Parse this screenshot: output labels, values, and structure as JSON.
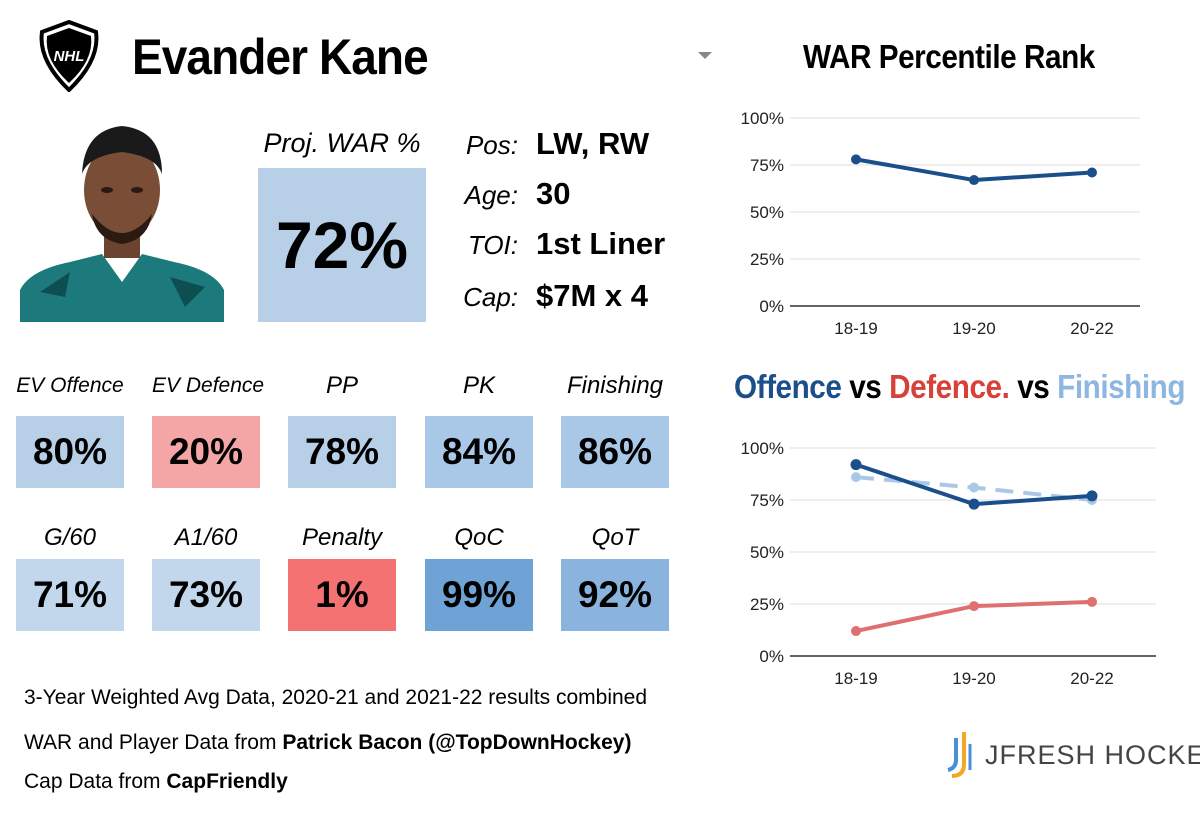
{
  "header": {
    "player_name": "Evander Kane",
    "league_logo_text": "NHL"
  },
  "projection": {
    "label": "Proj. WAR %",
    "value": "72%"
  },
  "info": [
    {
      "label": "Pos:",
      "value": "LW, RW"
    },
    {
      "label": "Age:",
      "value": "30"
    },
    {
      "label": "TOI:",
      "value": "1st Liner"
    },
    {
      "label": "Cap:",
      "value": "$7M x 4"
    }
  ],
  "stats": [
    {
      "label": "EV Offence",
      "value": "80%",
      "color": "#b7d0e8"
    },
    {
      "label": "EV Defence",
      "value": "20%",
      "color": "#f4a6a6"
    },
    {
      "label": "PP",
      "value": "78%",
      "color": "#b7d0e8"
    },
    {
      "label": "PK",
      "value": "84%",
      "color": "#a9c7e6"
    },
    {
      "label": "Finishing",
      "value": "86%",
      "color": "#a9c7e6"
    },
    {
      "label": "G/60",
      "value": "71%",
      "color": "#c2d7ec"
    },
    {
      "label": "A1/60",
      "value": "73%",
      "color": "#c2d7ec"
    },
    {
      "label": "Penalty",
      "value": "1%",
      "color": "#f57272"
    },
    {
      "label": "QoC",
      "value": "99%",
      "color": "#6fa3d6"
    },
    {
      "label": "QoT",
      "value": "92%",
      "color": "#8ab4de"
    }
  ],
  "footer": {
    "line1": "3-Year Weighted Avg Data, 2020-21 and 2021-22 results combined",
    "line2_prefix": "WAR and Player Data from ",
    "line2_bold": "Patrick Bacon (@TopDownHockey)",
    "line3_prefix": "Cap Data from ",
    "line3_bold": "CapFriendly"
  },
  "brand": {
    "name": "JFRESH HOCKEY"
  },
  "colors": {
    "offence": "#1a4f8c",
    "defence": "#d8403a",
    "finishing": "#8db7e0",
    "defence_line": "#e07070",
    "finishing_line": "#aac8e6"
  },
  "chart_data": [
    {
      "type": "line",
      "title": "WAR Percentile Rank",
      "categories": [
        "18-19",
        "19-20",
        "20-22"
      ],
      "series": [
        {
          "name": "WAR",
          "values": [
            78,
            67,
            71
          ]
        }
      ],
      "ylim": [
        0,
        100
      ],
      "yticks": [
        "0%",
        "25%",
        "50%",
        "75%",
        "100%"
      ],
      "grid": true
    },
    {
      "type": "line",
      "title_parts": [
        "Offence",
        " vs ",
        "Defence.",
        " vs ",
        "Finishing"
      ],
      "categories": [
        "18-19",
        "19-20",
        "20-22"
      ],
      "series": [
        {
          "name": "Finishing",
          "values": [
            86,
            81,
            75
          ],
          "style": "dashed"
        },
        {
          "name": "Offence",
          "values": [
            92,
            73,
            77
          ],
          "style": "solid"
        },
        {
          "name": "Defence",
          "values": [
            12,
            24,
            26
          ],
          "style": "solid"
        }
      ],
      "ylim": [
        0,
        100
      ],
      "yticks": [
        "0%",
        "25%",
        "50%",
        "75%",
        "100%"
      ],
      "grid": true
    }
  ]
}
